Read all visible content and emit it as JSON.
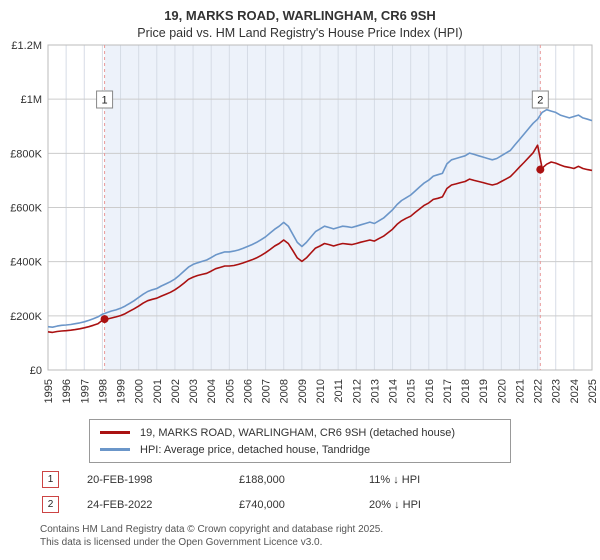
{
  "chart_data": {
    "type": "line",
    "title": "19, MARKS ROAD, WARLINGHAM, CR6 9SH",
    "subtitle": "Price paid vs. HM Land Registry's House Price Index (HPI)",
    "xlim": [
      1995,
      2025
    ],
    "ylim": [
      0,
      1200
    ],
    "x_start": 1995.0,
    "x_step": 0.25,
    "grid": true,
    "legend_position": "bottom",
    "xticks": [
      1995,
      1996,
      1997,
      1998,
      1999,
      2000,
      2001,
      2002,
      2003,
      2004,
      2005,
      2006,
      2007,
      2008,
      2009,
      2010,
      2011,
      2012,
      2013,
      2014,
      2015,
      2016,
      2017,
      2018,
      2019,
      2020,
      2021,
      2022,
      2023,
      2024,
      2025
    ],
    "yticks": [
      0,
      200,
      400,
      600,
      800,
      1000,
      1200
    ],
    "ytick_labels": [
      "£0",
      "£200K",
      "£400K",
      "£600K",
      "£800K",
      "£1M",
      "£1.2M"
    ],
    "band_color": "#edf2fa",
    "band_range": [
      1998.12,
      2022.15
    ],
    "marker_line_color": "#e89a9a",
    "grid_color": "#d6dce6",
    "axis_color": "#bbbbbb",
    "series": [
      {
        "name": "19, MARKS ROAD, WARLINGHAM, CR6 9SH (detached house)",
        "color": "#aa1111",
        "values": [
          141,
          139,
          142,
          144,
          145,
          147,
          149,
          152,
          156,
          160,
          165,
          171,
          184,
          188,
          192,
          196,
          201,
          208,
          217,
          226,
          236,
          247,
          256,
          261,
          265,
          273,
          280,
          287,
          296,
          308,
          321,
          335,
          343,
          349,
          353,
          357,
          365,
          374,
          379,
          384,
          384,
          386,
          390,
          395,
          401,
          407,
          414,
          423,
          433,
          445,
          458,
          467,
          480,
          467,
          441,
          414,
          401,
          414,
          432,
          450,
          458,
          467,
          463,
          458,
          463,
          467,
          465,
          463,
          467,
          472,
          476,
          480,
          476,
          485,
          494,
          507,
          520,
          538,
          551,
          560,
          568,
          582,
          595,
          608,
          617,
          630,
          634,
          639,
          670,
          683,
          687,
          692,
          696,
          705,
          700,
          696,
          692,
          687,
          683,
          687,
          696,
          705,
          714,
          731,
          749,
          766,
          784,
          802,
          830,
          745,
          760,
          768,
          764,
          757,
          751,
          748,
          744,
          752,
          744,
          740,
          737
        ]
      },
      {
        "name": "HPI: Average price, detached house, Tandridge",
        "color": "#6b96c9",
        "values": [
          160,
          158,
          162,
          165,
          166,
          168,
          171,
          174,
          178,
          183,
          189,
          196,
          206,
          212,
          218,
          222,
          228,
          236,
          246,
          256,
          268,
          280,
          290,
          296,
          301,
          310,
          318,
          326,
          336,
          350,
          365,
          380,
          390,
          396,
          401,
          406,
          415,
          425,
          431,
          436,
          436,
          439,
          443,
          449,
          456,
          463,
          471,
          481,
          492,
          506,
          520,
          531,
          545,
          531,
          501,
          471,
          456,
          471,
          491,
          511,
          521,
          531,
          526,
          521,
          526,
          531,
          529,
          526,
          531,
          536,
          541,
          546,
          541,
          551,
          561,
          576,
          591,
          611,
          626,
          636,
          646,
          661,
          676,
          691,
          701,
          716,
          721,
          726,
          761,
          776,
          781,
          786,
          791,
          801,
          796,
          791,
          786,
          781,
          776,
          781,
          791,
          801,
          811,
          831,
          851,
          871,
          891,
          911,
          926,
          951,
          961,
          956,
          951,
          941,
          936,
          931,
          936,
          941,
          931,
          926,
          921
        ]
      }
    ],
    "markers": [
      {
        "label": "1",
        "x": 1998.12,
        "value": 188
      },
      {
        "label": "2",
        "x": 2022.15,
        "value": 740
      }
    ]
  },
  "legend": {
    "items": [
      {
        "label": "19, MARKS ROAD, WARLINGHAM, CR6 9SH (detached house)"
      },
      {
        "label": "HPI: Average price, detached house, Tandridge"
      }
    ]
  },
  "transactions": [
    {
      "num": "1",
      "date": "20-FEB-1998",
      "price": "£188,000",
      "hpi": "11% ↓ HPI"
    },
    {
      "num": "2",
      "date": "24-FEB-2022",
      "price": "£740,000",
      "hpi": "20% ↓ HPI"
    }
  ],
  "footer": {
    "line1": "Contains HM Land Registry data © Crown copyright and database right 2025.",
    "line2": "This data is licensed under the Open Government Licence v3.0."
  }
}
